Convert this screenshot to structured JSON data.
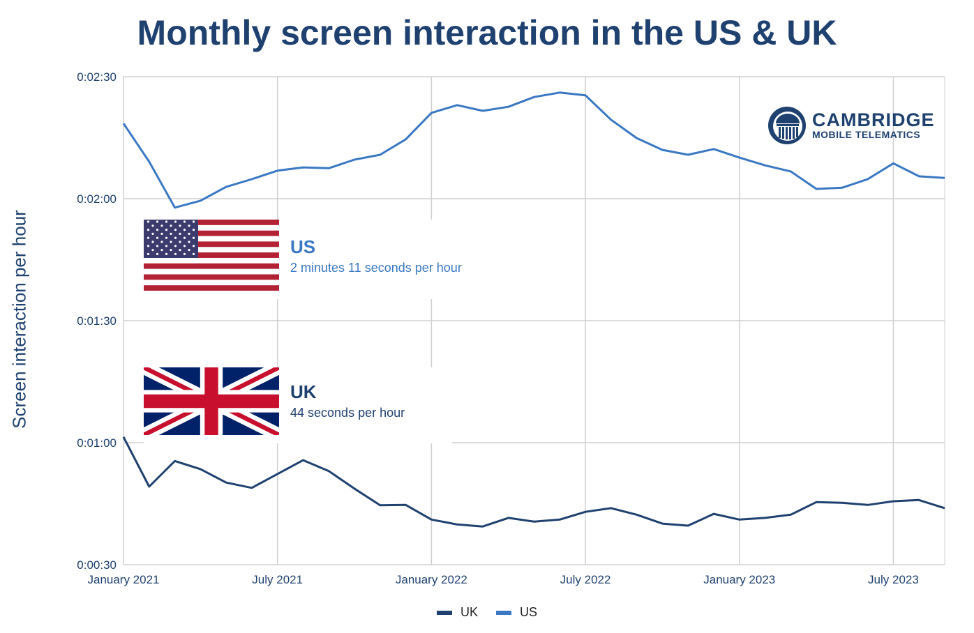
{
  "chart_data": {
    "type": "line",
    "title": "Monthly screen interaction in the US & UK",
    "xlabel": "",
    "ylabel": "Screen interaction per hour",
    "y_unit": "seconds",
    "ylim": [
      30,
      150
    ],
    "y_ticks": [
      {
        "value": 30,
        "label": "0:00:30"
      },
      {
        "value": 60,
        "label": "0:01:00"
      },
      {
        "value": 90,
        "label": "0:01:30"
      },
      {
        "value": 120,
        "label": "0:02:00"
      },
      {
        "value": 150,
        "label": "0:02:30"
      }
    ],
    "x_ticks": [
      {
        "index": 0,
        "label": "January 2021"
      },
      {
        "index": 6,
        "label": "July 2021"
      },
      {
        "index": 12,
        "label": "January 2022"
      },
      {
        "index": 18,
        "label": "July 2022"
      },
      {
        "index": 24,
        "label": "January 2023"
      },
      {
        "index": 30,
        "label": "July 2023"
      }
    ],
    "x": [
      "2021-01",
      "2021-02",
      "2021-03",
      "2021-04",
      "2021-05",
      "2021-06",
      "2021-07",
      "2021-08",
      "2021-09",
      "2021-10",
      "2021-11",
      "2021-12",
      "2022-01",
      "2022-02",
      "2022-03",
      "2022-04",
      "2022-05",
      "2022-06",
      "2022-07",
      "2022-08",
      "2022-09",
      "2022-10",
      "2022-11",
      "2022-12",
      "2023-01",
      "2023-02",
      "2023-03",
      "2023-04",
      "2023-05",
      "2023-06",
      "2023-07",
      "2023-08",
      "2023-09"
    ],
    "grid": true,
    "legend_position": "bottom",
    "series": [
      {
        "name": "UK",
        "color": "#1f4170",
        "values": [
          61.4,
          49.2,
          55.5,
          53.5,
          50.2,
          48.9,
          52.3,
          55.7,
          53.0,
          48.7,
          44.6,
          44.7,
          41.1,
          39.9,
          39.4,
          41.5,
          40.6,
          41.1,
          43.0,
          43.9,
          42.3,
          40.1,
          39.6,
          42.5,
          41.1,
          41.5,
          42.3,
          45.4,
          45.2,
          44.7,
          45.6,
          45.9,
          43.9
        ]
      },
      {
        "name": "US",
        "color": "#3a78c3",
        "values": [
          138.5,
          129.1,
          117.8,
          119.5,
          122.9,
          124.8,
          126.9,
          127.7,
          127.5,
          129.6,
          130.8,
          134.6,
          141.1,
          143.0,
          141.6,
          142.6,
          145.0,
          146.1,
          145.4,
          139.4,
          134.9,
          132.0,
          130.8,
          132.2,
          130.1,
          128.2,
          126.7,
          122.4,
          122.7,
          124.8,
          128.7,
          125.5,
          125.1
        ]
      }
    ],
    "annotations": [
      {
        "series": "US",
        "title": "US",
        "text": "2 minutes 11 seconds per hour",
        "icon": "us-flag-icon"
      },
      {
        "series": "UK",
        "title": "UK",
        "text": "44 seconds per hour",
        "icon": "uk-flag-icon"
      }
    ]
  },
  "logo": {
    "line1": "CAMBRIDGE",
    "line2": "MOBILE TELEMATICS"
  },
  "colors": {
    "title": "#1f4170",
    "us": "#3a78c3",
    "uk": "#1f4170",
    "grid": "#d0d0d0"
  }
}
